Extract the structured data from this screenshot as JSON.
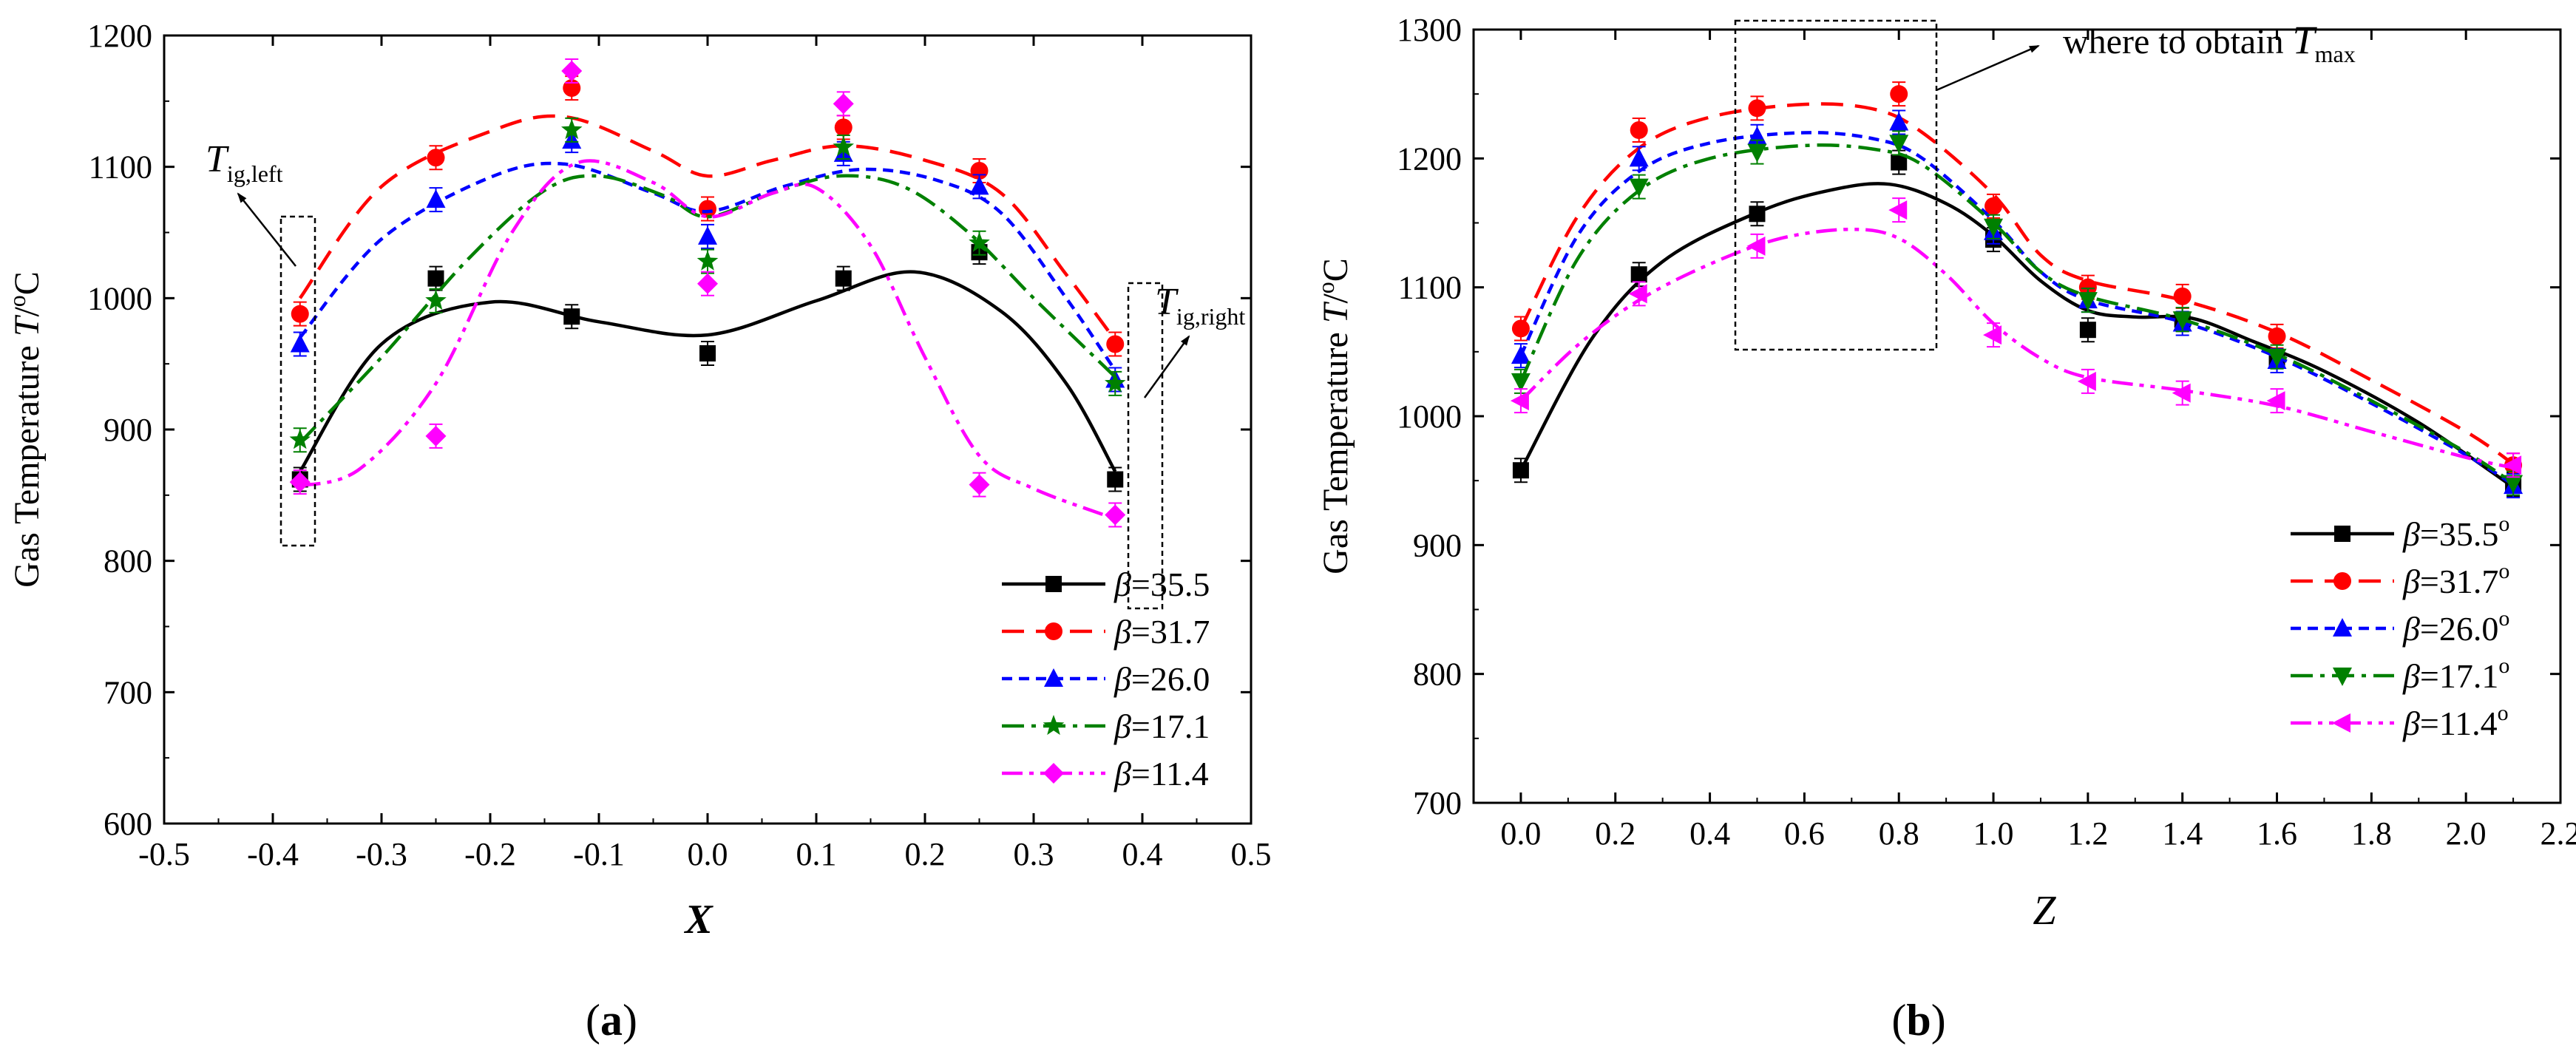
{
  "chart_data": [
    {
      "panel": "a",
      "panel_label_open": "(",
      "panel_label_letter": "a",
      "panel_label_close": ")",
      "type": "line",
      "ylabel_text": "Gas Temperature",
      "ylabel_var": "T",
      "ylabel_sup": "o",
      "ylabel_unit": "/",
      "ylabel_unit_end": "C",
      "xlabel": "X",
      "xlim": [
        -0.5,
        0.5
      ],
      "ylim": [
        600,
        1200
      ],
      "xticks": [
        -0.5,
        -0.4,
        -0.3,
        -0.2,
        -0.1,
        0.0,
        0.1,
        0.2,
        0.3,
        0.4,
        0.5
      ],
      "xtick_labels": [
        "-0.5",
        "-0.4",
        "-0.3",
        "-0.2",
        "-0.1",
        "0.0",
        "0.1",
        "0.2",
        "0.3",
        "0.4",
        "0.5"
      ],
      "yticks": [
        600,
        700,
        800,
        900,
        1000,
        1100,
        1200
      ],
      "ytick_labels": [
        "600",
        "700",
        "800",
        "900",
        "1000",
        "1100",
        "1200"
      ],
      "legend_position": "bottom-right",
      "legend_beta": "β",
      "legend_sup": "",
      "series": [
        {
          "name": "=35.5",
          "color": "#000000",
          "dash": "",
          "marker": "square",
          "x": [
            -0.375,
            -0.25,
            -0.125,
            0.0,
            0.125,
            0.25,
            0.375
          ],
          "values": [
            862,
            1015,
            986,
            958,
            1015,
            1035,
            862
          ],
          "curve": [
            [
              -0.375,
              868
            ],
            [
              -0.3,
              965
            ],
            [
              -0.2,
              997
            ],
            [
              -0.1,
              982
            ],
            [
              0.0,
              972
            ],
            [
              0.1,
              998
            ],
            [
              0.19,
              1020
            ],
            [
              0.27,
              990
            ],
            [
              0.33,
              935
            ],
            [
              0.375,
              868
            ]
          ]
        },
        {
          "name": "=31.7",
          "color": "#ff0000",
          "dash": "30,16",
          "marker": "circle",
          "x": [
            -0.375,
            -0.25,
            -0.125,
            0.0,
            0.125,
            0.25,
            0.375
          ],
          "values": [
            988,
            1107,
            1160,
            1068,
            1130,
            1097,
            965
          ],
          "curve": [
            [
              -0.375,
              1000
            ],
            [
              -0.3,
              1085
            ],
            [
              -0.2,
              1127
            ],
            [
              -0.13,
              1138
            ],
            [
              -0.05,
              1112
            ],
            [
              0.0,
              1093
            ],
            [
              0.06,
              1105
            ],
            [
              0.125,
              1116
            ],
            [
              0.2,
              1105
            ],
            [
              0.27,
              1080
            ],
            [
              0.33,
              1018
            ],
            [
              0.375,
              968
            ]
          ]
        },
        {
          "name": "=26.0",
          "color": "#0000ff",
          "dash": "14,9",
          "marker": "triangle",
          "x": [
            -0.375,
            -0.25,
            -0.125,
            0.0,
            0.125,
            0.25,
            0.375
          ],
          "values": [
            965,
            1075,
            1120,
            1047,
            1110,
            1085,
            938
          ],
          "curve": [
            [
              -0.375,
              970
            ],
            [
              -0.3,
              1045
            ],
            [
              -0.2,
              1092
            ],
            [
              -0.13,
              1102
            ],
            [
              -0.05,
              1080
            ],
            [
              0.0,
              1066
            ],
            [
              0.07,
              1085
            ],
            [
              0.14,
              1098
            ],
            [
              0.21,
              1090
            ],
            [
              0.27,
              1065
            ],
            [
              0.33,
              1000
            ],
            [
              0.375,
              945
            ]
          ]
        },
        {
          "name": "=17.1",
          "color": "#008000",
          "dash": "30,10,6,10",
          "marker": "star",
          "x": [
            -0.375,
            -0.25,
            -0.125,
            0.0,
            0.125,
            0.25,
            0.375
          ],
          "values": [
            892,
            998,
            1128,
            1028,
            1115,
            1042,
            935
          ],
          "curve": [
            [
              -0.375,
              890
            ],
            [
              -0.3,
              955
            ],
            [
              -0.22,
              1030
            ],
            [
              -0.15,
              1082
            ],
            [
              -0.1,
              1093
            ],
            [
              -0.04,
              1078
            ],
            [
              0.0,
              1062
            ],
            [
              0.06,
              1080
            ],
            [
              0.12,
              1093
            ],
            [
              0.18,
              1085
            ],
            [
              0.24,
              1050
            ],
            [
              0.3,
              1000
            ],
            [
              0.35,
              960
            ],
            [
              0.375,
              940
            ]
          ]
        },
        {
          "name": "=11.4",
          "color": "#ff00ff",
          "dash": "28,9,6,9,6,9",
          "marker": "diamond",
          "x": [
            -0.375,
            -0.25,
            -0.125,
            0.0,
            0.125,
            0.25,
            0.375
          ],
          "values": [
            860,
            895,
            1173,
            1011,
            1148,
            858,
            835
          ],
          "curve": [
            [
              -0.375,
              857
            ],
            [
              -0.32,
              870
            ],
            [
              -0.25,
              935
            ],
            [
              -0.18,
              1050
            ],
            [
              -0.12,
              1103
            ],
            [
              -0.05,
              1088
            ],
            [
              0.0,
              1062
            ],
            [
              0.06,
              1080
            ],
            [
              0.1,
              1084
            ],
            [
              0.15,
              1040
            ],
            [
              0.2,
              955
            ],
            [
              0.25,
              880
            ],
            [
              0.3,
              855
            ],
            [
              0.375,
              832
            ]
          ]
        }
      ],
      "annotations": {
        "left_label_var": "T",
        "left_label_sub": "ig,left",
        "right_label_var": "T",
        "right_label_sub": "ig,right"
      }
    },
    {
      "panel": "b",
      "panel_label_open": "(",
      "panel_label_letter": "b",
      "panel_label_close": ")",
      "type": "line",
      "ylabel_text": "Gas Temperature",
      "ylabel_var": "T",
      "ylabel_sup": "o",
      "ylabel_unit": "/",
      "ylabel_unit_end": "C",
      "xlabel": "Z",
      "xlim": [
        -0.1,
        2.2
      ],
      "ylim": [
        700,
        1300
      ],
      "xticks": [
        0.0,
        0.2,
        0.4,
        0.6,
        0.8,
        1.0,
        1.2,
        1.4,
        1.6,
        1.8,
        2.0,
        2.2
      ],
      "xtick_labels": [
        "0.0",
        "0.2",
        "0.4",
        "0.6",
        "0.8",
        "1.0",
        "1.2",
        "1.4",
        "1.6",
        "1.8",
        "2.0",
        "2.2"
      ],
      "yticks": [
        700,
        800,
        900,
        1000,
        1100,
        1200,
        1300
      ],
      "ytick_labels": [
        "700",
        "800",
        "900",
        "1000",
        "1100",
        "1200",
        "1300"
      ],
      "legend_position": "bottom-right",
      "legend_beta": "β",
      "legend_sup": "o",
      "series": [
        {
          "name": "=35.5",
          "color": "#000000",
          "dash": "",
          "marker": "square",
          "x": [
            0.0,
            0.25,
            0.5,
            0.8,
            1.0,
            1.2,
            1.4,
            1.6,
            2.1
          ],
          "values": [
            958,
            1110,
            1157,
            1197,
            1137,
            1067,
            1075,
            1043,
            947
          ],
          "curve": [
            [
              0.0,
              958
            ],
            [
              0.15,
              1060
            ],
            [
              0.3,
              1120
            ],
            [
              0.5,
              1158
            ],
            [
              0.65,
              1175
            ],
            [
              0.78,
              1180
            ],
            [
              0.9,
              1165
            ],
            [
              1.0,
              1140
            ],
            [
              1.1,
              1105
            ],
            [
              1.2,
              1082
            ],
            [
              1.3,
              1077
            ],
            [
              1.42,
              1076
            ],
            [
              1.55,
              1058
            ],
            [
              1.7,
              1035
            ],
            [
              1.9,
              995
            ],
            [
              2.1,
              945
            ]
          ]
        },
        {
          "name": "=31.7",
          "color": "#ff0000",
          "dash": "30,16",
          "marker": "circle",
          "x": [
            0.0,
            0.25,
            0.5,
            0.8,
            1.0,
            1.2,
            1.4,
            1.6,
            2.1
          ],
          "values": [
            1068,
            1222,
            1239,
            1250,
            1163,
            1100,
            1093,
            1062,
            962
          ],
          "curve": [
            [
              0.0,
              1068
            ],
            [
              0.12,
              1155
            ],
            [
              0.25,
              1208
            ],
            [
              0.4,
              1232
            ],
            [
              0.6,
              1242
            ],
            [
              0.75,
              1238
            ],
            [
              0.85,
              1220
            ],
            [
              1.0,
              1172
            ],
            [
              1.1,
              1125
            ],
            [
              1.2,
              1105
            ],
            [
              1.4,
              1090
            ],
            [
              1.6,
              1065
            ],
            [
              1.8,
              1028
            ],
            [
              2.0,
              988
            ],
            [
              2.1,
              963
            ]
          ]
        },
        {
          "name": "=26.0",
          "color": "#0000ff",
          "dash": "14,9",
          "marker": "triangle",
          "x": [
            0.0,
            0.25,
            0.5,
            0.8,
            1.0,
            1.2,
            1.4,
            1.6,
            2.1
          ],
          "values": [
            1047,
            1200,
            1217,
            1228,
            1143,
            1090,
            1072,
            1043,
            946
          ],
          "curve": [
            [
              0.0,
              1047
            ],
            [
              0.12,
              1140
            ],
            [
              0.25,
              1190
            ],
            [
              0.4,
              1212
            ],
            [
              0.6,
              1220
            ],
            [
              0.75,
              1215
            ],
            [
              0.85,
              1200
            ],
            [
              1.0,
              1152
            ],
            [
              1.1,
              1112
            ],
            [
              1.2,
              1090
            ],
            [
              1.4,
              1073
            ],
            [
              1.6,
              1046
            ],
            [
              1.8,
              1010
            ],
            [
              2.0,
              970
            ],
            [
              2.1,
              947
            ]
          ]
        },
        {
          "name": "=17.1",
          "color": "#008000",
          "dash": "30,10,6,10",
          "marker": "triangle-down",
          "x": [
            0.0,
            0.25,
            0.5,
            0.8,
            1.0,
            1.2,
            1.4,
            1.6,
            2.1
          ],
          "values": [
            1027,
            1178,
            1205,
            1212,
            1147,
            1090,
            1075,
            1046,
            948
          ],
          "curve": [
            [
              0.0,
              1027
            ],
            [
              0.12,
              1122
            ],
            [
              0.25,
              1175
            ],
            [
              0.4,
              1200
            ],
            [
              0.6,
              1210
            ],
            [
              0.75,
              1207
            ],
            [
              0.85,
              1195
            ],
            [
              1.0,
              1150
            ],
            [
              1.1,
              1112
            ],
            [
              1.2,
              1093
            ],
            [
              1.4,
              1075
            ],
            [
              1.6,
              1048
            ],
            [
              1.8,
              1012
            ],
            [
              2.0,
              972
            ],
            [
              2.1,
              948
            ]
          ]
        },
        {
          "name": "=11.4",
          "color": "#ff00ff",
          "dash": "28,9,6,9,6,9",
          "marker": "triangle-left",
          "x": [
            0.0,
            0.25,
            0.5,
            0.8,
            1.0,
            1.2,
            1.4,
            1.6,
            2.1
          ],
          "values": [
            1012,
            1095,
            1132,
            1160,
            1063,
            1027,
            1018,
            1012,
            962
          ],
          "curve": [
            [
              0.0,
              1012
            ],
            [
              0.12,
              1055
            ],
            [
              0.25,
              1090
            ],
            [
              0.4,
              1118
            ],
            [
              0.55,
              1138
            ],
            [
              0.7,
              1145
            ],
            [
              0.8,
              1138
            ],
            [
              0.9,
              1110
            ],
            [
              1.0,
              1072
            ],
            [
              1.1,
              1045
            ],
            [
              1.2,
              1030
            ],
            [
              1.4,
              1020
            ],
            [
              1.6,
              1008
            ],
            [
              1.8,
              988
            ],
            [
              2.0,
              968
            ],
            [
              2.1,
              960
            ]
          ]
        }
      ],
      "annotations": {
        "max_label_prefix": "where to obtain",
        "max_label_var": "T",
        "max_label_sub": "max"
      }
    }
  ]
}
